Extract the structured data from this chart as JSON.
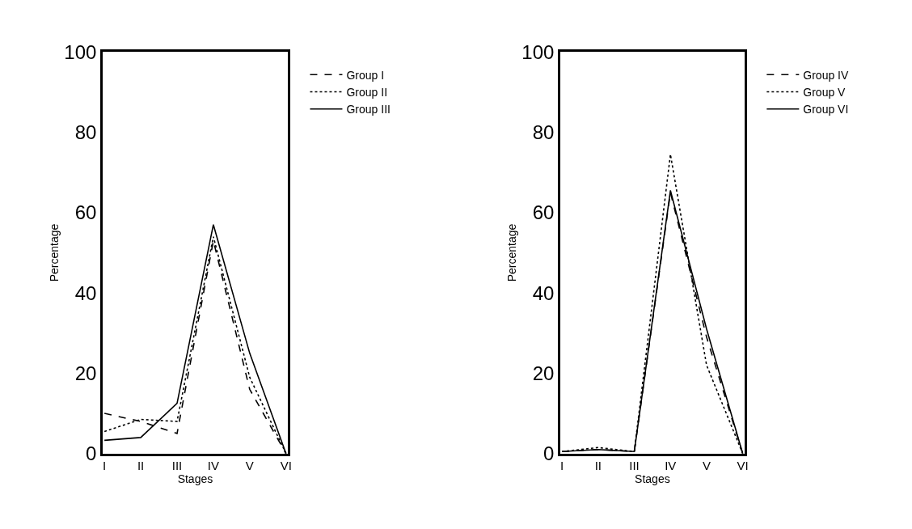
{
  "chart_data": [
    {
      "type": "line",
      "xlabel": "Stages",
      "ylabel": "Percentage",
      "categories": [
        "I",
        "II",
        "III",
        "IV",
        "V",
        "VI"
      ],
      "ylim": [
        0,
        100
      ],
      "yticks": [
        0,
        20,
        40,
        60,
        80,
        100
      ],
      "legend": "right",
      "marker": "none",
      "series": [
        {
          "name": "Group I",
          "color": "#000000",
          "line_style": "dashed",
          "values": [
            10,
            8,
            5,
            53,
            16,
            0
          ]
        },
        {
          "name": "Group II",
          "color": "#000000",
          "line_style": "dotted",
          "values": [
            5.5,
            8.5,
            8,
            54,
            19,
            0
          ]
        },
        {
          "name": "Group III",
          "color": "#000000",
          "line_style": "solid",
          "values": [
            3.3,
            4,
            12.5,
            57,
            25,
            0
          ]
        }
      ]
    },
    {
      "type": "line",
      "xlabel": "Stages",
      "ylabel": "Percentage",
      "categories": [
        "I",
        "II",
        "III",
        "IV",
        "V",
        "VI"
      ],
      "ylim": [
        0,
        100
      ],
      "yticks": [
        0,
        20,
        40,
        60,
        80,
        100
      ],
      "legend": "right",
      "marker": "none",
      "series": [
        {
          "name": "Group IV",
          "color": "#000000",
          "line_style": "dashed",
          "values": [
            0.5,
            1,
            0.5,
            65,
            29,
            0
          ]
        },
        {
          "name": "Group V",
          "color": "#000000",
          "line_style": "dotted",
          "values": [
            0.5,
            1.5,
            0.5,
            74.5,
            22,
            0
          ]
        },
        {
          "name": "Group VI",
          "color": "#000000",
          "line_style": "solid",
          "values": [
            0.5,
            1,
            0.5,
            65.5,
            31,
            0
          ]
        }
      ]
    }
  ]
}
